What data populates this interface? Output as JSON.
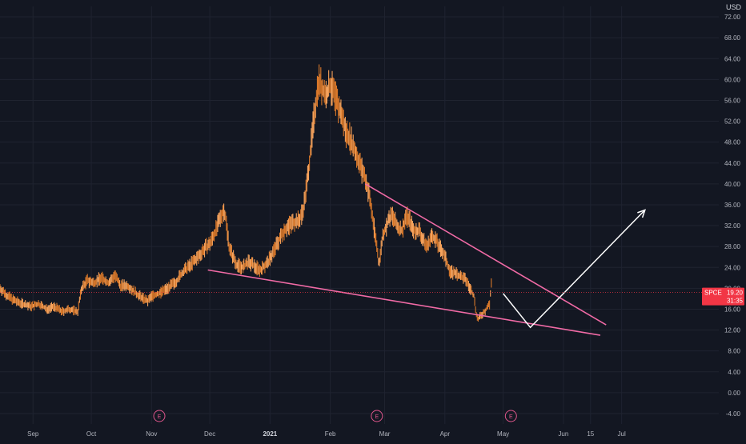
{
  "chart_data": {
    "type": "candlestick",
    "ticker": "SPCE",
    "currency": "USD",
    "last_price": "19.20",
    "countdown": "31:35",
    "y_ticks": [
      "72.00",
      "68.00",
      "64.00",
      "60.00",
      "56.00",
      "52.00",
      "48.00",
      "44.00",
      "40.00",
      "36.00",
      "32.00",
      "28.00",
      "24.00",
      "20.00",
      "16.00",
      "12.00",
      "8.00",
      "4.00",
      "0.00",
      "-4.00"
    ],
    "ylim": [
      -6,
      74
    ],
    "x_ticks": [
      {
        "label": "Sep",
        "x": 5
      },
      {
        "label": "Oct",
        "x": 35
      },
      {
        "label": "Nov",
        "x": 66
      },
      {
        "label": "Dec",
        "x": 96
      },
      {
        "label": "2021",
        "x": 127
      },
      {
        "label": "Feb",
        "x": 158
      },
      {
        "label": "Mar",
        "x": 186
      },
      {
        "label": "Apr",
        "x": 217
      },
      {
        "label": "May",
        "x": 247
      },
      {
        "label": "Jun",
        "x": 278
      },
      {
        "label": "15",
        "x": 292
      },
      {
        "label": "Jul",
        "x": 308
      }
    ],
    "xlim": [
      -12,
      358
    ],
    "price_path": [
      [
        -12,
        20
      ],
      [
        -8,
        18.5
      ],
      [
        -4,
        17.5
      ],
      [
        0,
        17
      ],
      [
        4,
        16.5
      ],
      [
        8,
        17
      ],
      [
        12,
        16
      ],
      [
        16,
        16.5
      ],
      [
        20,
        15.5
      ],
      [
        24,
        16
      ],
      [
        28,
        15.5
      ],
      [
        30,
        20
      ],
      [
        33,
        21.5
      ],
      [
        36,
        21
      ],
      [
        40,
        22
      ],
      [
        44,
        21
      ],
      [
        47,
        22.5
      ],
      [
        50,
        20.5
      ],
      [
        54,
        20.5
      ],
      [
        58,
        19
      ],
      [
        62,
        18
      ],
      [
        64,
        17.5
      ],
      [
        66,
        18.5
      ],
      [
        70,
        19
      ],
      [
        74,
        20
      ],
      [
        78,
        21
      ],
      [
        82,
        23
      ],
      [
        86,
        24.5
      ],
      [
        90,
        26
      ],
      [
        93,
        27.5
      ],
      [
        96,
        28.5
      ],
      [
        99,
        31
      ],
      [
        101,
        33
      ],
      [
        103,
        35
      ],
      [
        104,
        34
      ],
      [
        105,
        31
      ],
      [
        106,
        28
      ],
      [
        108,
        26
      ],
      [
        110,
        24.5
      ],
      [
        113,
        24
      ],
      [
        116,
        25
      ],
      [
        118,
        24.5
      ],
      [
        122,
        23.5
      ],
      [
        126,
        25
      ],
      [
        130,
        28
      ],
      [
        134,
        31
      ],
      [
        138,
        32.5
      ],
      [
        142,
        33
      ],
      [
        144,
        35
      ],
      [
        146,
        40
      ],
      [
        148,
        47
      ],
      [
        150,
        54
      ],
      [
        152,
        60
      ],
      [
        154,
        58
      ],
      [
        156,
        57
      ],
      [
        158,
        59
      ],
      [
        160,
        57
      ],
      [
        162,
        55
      ],
      [
        164,
        53
      ],
      [
        166,
        50
      ],
      [
        168,
        49
      ],
      [
        170,
        47
      ],
      [
        172,
        45
      ],
      [
        174,
        43
      ],
      [
        176,
        41
      ],
      [
        178,
        38
      ],
      [
        180,
        33
      ],
      [
        182,
        28
      ],
      [
        183,
        24.5
      ],
      [
        185,
        30
      ],
      [
        188,
        33
      ],
      [
        190,
        34
      ],
      [
        192,
        32
      ],
      [
        195,
        31
      ],
      [
        197,
        34
      ],
      [
        199,
        33
      ],
      [
        201,
        31
      ],
      [
        204,
        31
      ],
      [
        206,
        29
      ],
      [
        208,
        28
      ],
      [
        210,
        30
      ],
      [
        212,
        29.5
      ],
      [
        214,
        28
      ],
      [
        216,
        27
      ],
      [
        218,
        25
      ],
      [
        220,
        23
      ],
      [
        222,
        23
      ],
      [
        224,
        22.5
      ],
      [
        226,
        22
      ],
      [
        228,
        21.5
      ],
      [
        230,
        20
      ],
      [
        232,
        18.5
      ],
      [
        233,
        15.5
      ],
      [
        234,
        14
      ],
      [
        236,
        15
      ],
      [
        238,
        15.8
      ],
      [
        240,
        17
      ],
      [
        241,
        21.5
      ]
    ],
    "pattern_lines": [
      {
        "name": "falling-wedge-upper",
        "from": [
          176,
          40
        ],
        "to": [
          300,
          13
        ]
      },
      {
        "name": "falling-wedge-lower",
        "from": [
          95,
          23.5
        ],
        "to": [
          297,
          11
        ]
      }
    ],
    "projection_path": [
      [
        247,
        19
      ],
      [
        261,
        12.5
      ],
      [
        320,
        35
      ]
    ],
    "earnings_markers": [
      {
        "label": "E",
        "x": 70
      },
      {
        "label": "E",
        "x": 182
      },
      {
        "label": "E",
        "x": 251
      }
    ],
    "colors": {
      "background": "#131722",
      "candle": "#f7a35c",
      "candle_dark": "#d9782a",
      "wedge_line": "#f06aa5",
      "projection": "#ffffff",
      "price_badge": "#f23645",
      "grid": "#1f2330",
      "axis_text": "#b2b5be"
    }
  }
}
